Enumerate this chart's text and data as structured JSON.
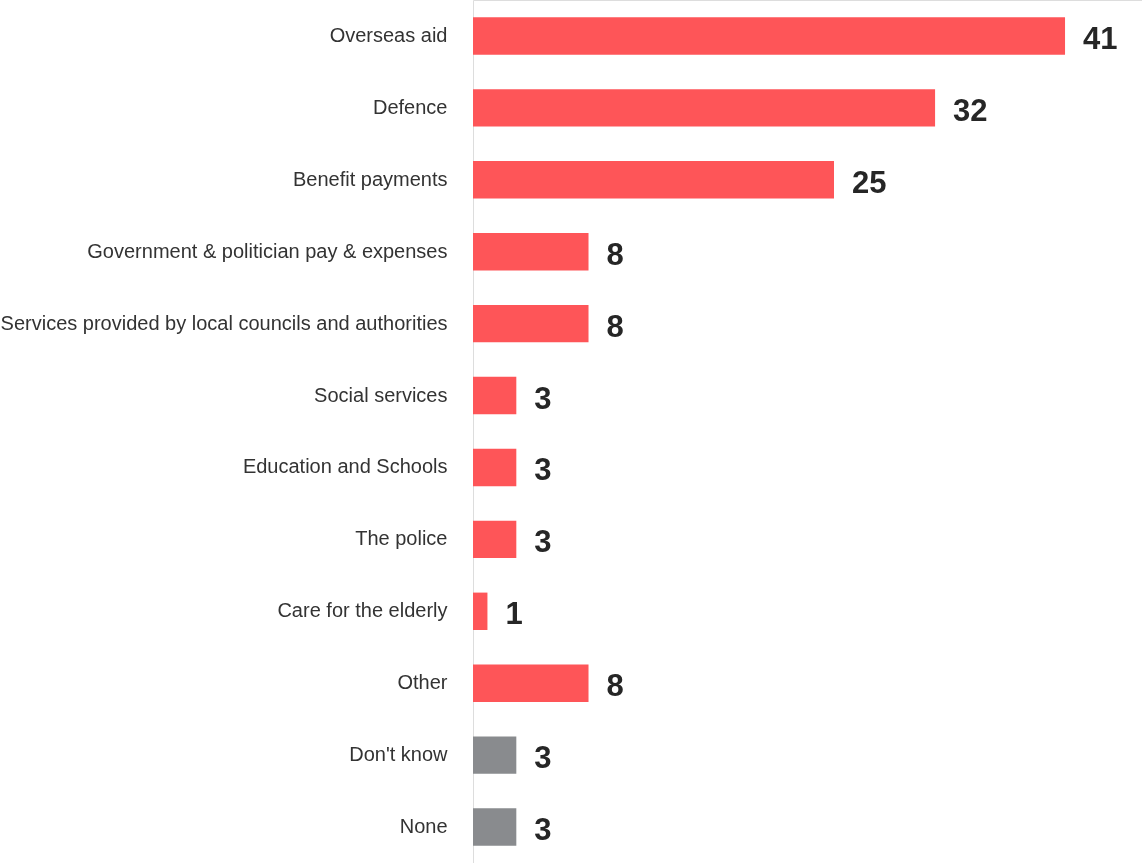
{
  "chart_data": {
    "type": "bar",
    "orientation": "horizontal",
    "data_labels": true,
    "grid": false,
    "legend": false,
    "categories": [
      "Overseas aid",
      "Defence",
      "Benefit payments",
      "Government & politician pay & expenses",
      "Services provided by local councils and authorities",
      "Social services",
      "Education and Schools",
      "The police",
      "Care for the elderly",
      "Other",
      "Don't know",
      "None"
    ],
    "values": [
      41,
      32,
      25,
      8,
      8,
      3,
      3,
      3,
      1,
      8,
      3,
      3
    ],
    "colors": [
      "#fe5558",
      "#fe5558",
      "#fe5558",
      "#fe5558",
      "#fe5558",
      "#fe5558",
      "#fe5558",
      "#fe5558",
      "#fe5558",
      "#fe5558",
      "#898b8e",
      "#898b8e"
    ]
  }
}
